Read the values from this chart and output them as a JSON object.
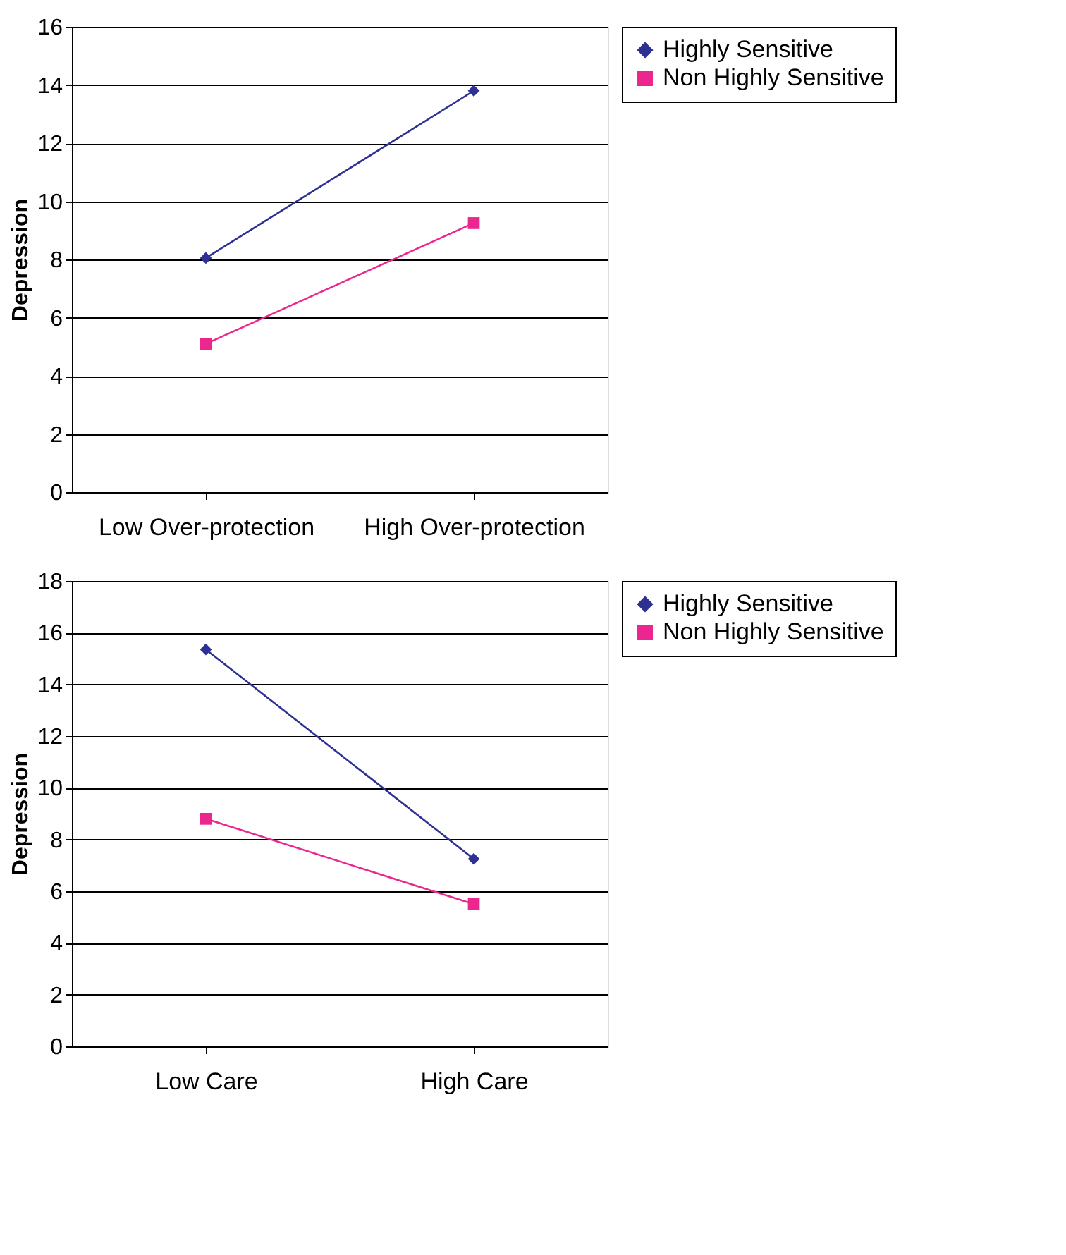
{
  "chart_data": [
    {
      "type": "line",
      "ylabel": "Depression",
      "categories": [
        "Low Over-protection",
        "High Over-protection"
      ],
      "series": [
        {
          "name": "Highly Sensitive",
          "color": "#2e3192",
          "marker": "diamond",
          "values": [
            8.05,
            13.8
          ]
        },
        {
          "name": "Non Highly Sensitive",
          "color": "#ec268f",
          "marker": "square",
          "values": [
            5.1,
            9.25
          ]
        }
      ],
      "ylim": [
        0,
        16
      ],
      "yticks": [
        0,
        2,
        4,
        6,
        8,
        10,
        12,
        14,
        16
      ],
      "grid": "y",
      "legend": "right"
    },
    {
      "type": "line",
      "ylabel": "Depression",
      "categories": [
        "Low Care",
        "High Care"
      ],
      "series": [
        {
          "name": "Highly Sensitive",
          "color": "#2e3192",
          "marker": "diamond",
          "values": [
            15.35,
            7.25
          ]
        },
        {
          "name": "Non Highly Sensitive",
          "color": "#ec268f",
          "marker": "square",
          "values": [
            8.8,
            5.5
          ]
        }
      ],
      "ylim": [
        0,
        18
      ],
      "yticks": [
        0,
        2,
        4,
        6,
        8,
        10,
        12,
        14,
        16,
        18
      ],
      "grid": "y",
      "legend": "right"
    }
  ]
}
